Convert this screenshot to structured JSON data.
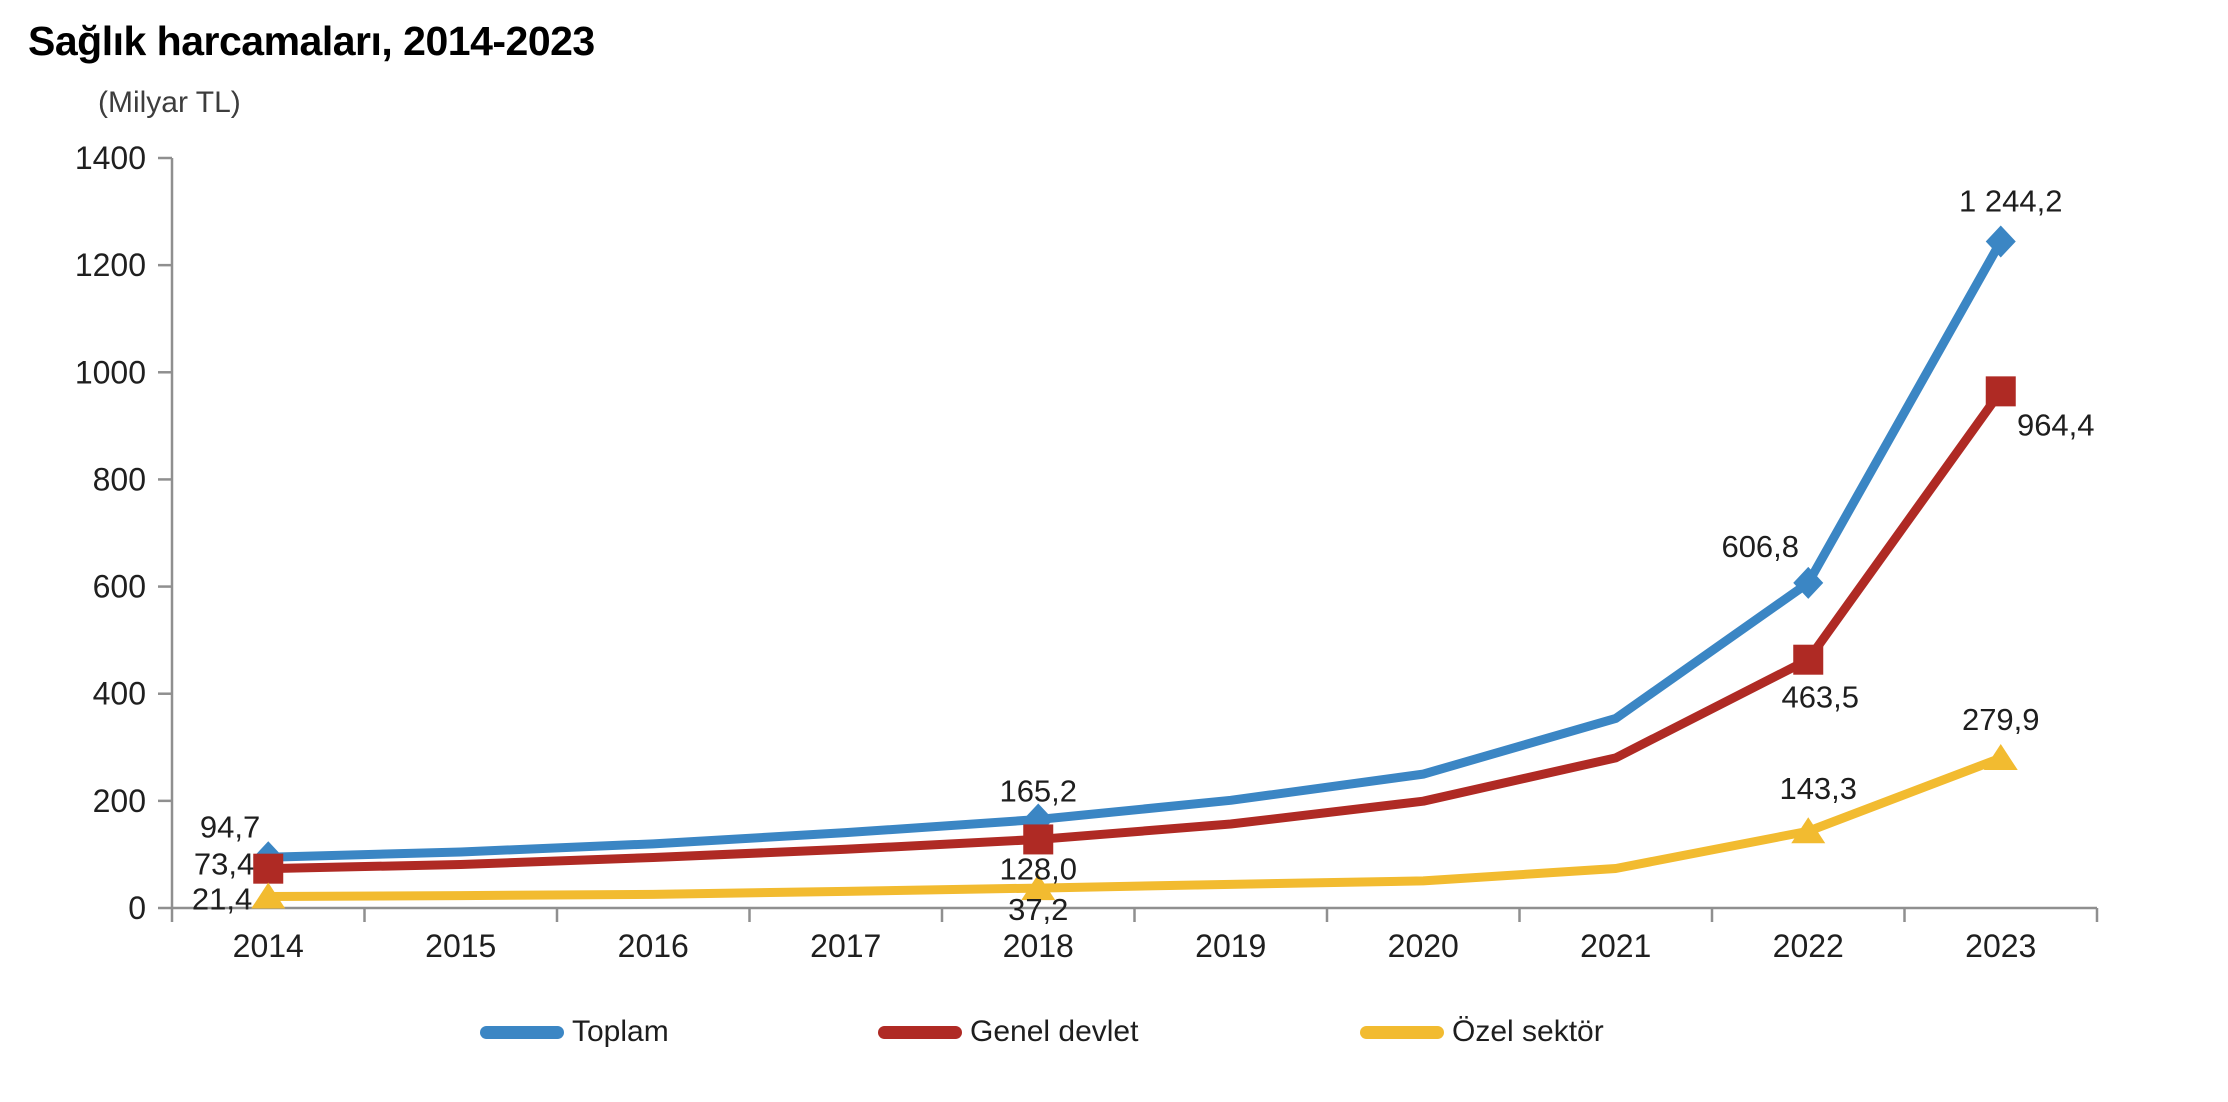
{
  "chart_data": {
    "type": "line",
    "title": "Sağlık harcamaları, 2014-2023",
    "unit_label": "(Milyar TL)",
    "categories": [
      "2014",
      "2015",
      "2016",
      "2017",
      "2018",
      "2019",
      "2020",
      "2021",
      "2022",
      "2023"
    ],
    "ylim": [
      0,
      1400
    ],
    "yticks": [
      0,
      200,
      400,
      600,
      800,
      1000,
      1200,
      1400
    ],
    "grid": false,
    "legend_position": "bottom",
    "axis_color": "#8f8f8f",
    "text_color": "#1f1f1f",
    "series": [
      {
        "name": "Toplam",
        "color": "#3b86c4",
        "marker": "diamond",
        "values": [
          94.7,
          104.6,
          119.8,
          140.6,
          165.2,
          201.0,
          249.9,
          353.9,
          606.8,
          1244.2
        ],
        "labels": [
          {
            "x": "2014",
            "text": "94,7",
            "anchor": "end",
            "dx": -8,
            "dy": -20
          },
          {
            "x": "2018",
            "text": "165,2",
            "anchor": "middle",
            "dx": 0,
            "dy": -18
          },
          {
            "x": "2022",
            "text": "606,8",
            "anchor": "middle",
            "dx": -48,
            "dy": -26
          },
          {
            "x": "2023",
            "text": "1 244,2",
            "anchor": "middle",
            "dx": 10,
            "dy": -30
          }
        ]
      },
      {
        "name": "Genel devlet",
        "color": "#af2a24",
        "marker": "square",
        "values": [
          73.4,
          81.3,
          94.3,
          109.6,
          128.0,
          156.8,
          199.4,
          280.3,
          463.5,
          964.4
        ],
        "labels": [
          {
            "x": "2014",
            "text": "73,4",
            "anchor": "end",
            "dx": -14,
            "dy": 6
          },
          {
            "x": "2018",
            "text": "128,0",
            "anchor": "middle",
            "dx": 0,
            "dy": 40
          },
          {
            "x": "2022",
            "text": "463,5",
            "anchor": "middle",
            "dx": 12,
            "dy": 48
          },
          {
            "x": "2023",
            "text": "964,4",
            "anchor": "middle",
            "dx": 55,
            "dy": 44
          }
        ]
      },
      {
        "name": "Özel sektör",
        "color": "#f2bb30",
        "marker": "triangle",
        "values": [
          21.4,
          23.2,
          25.5,
          31.1,
          37.2,
          44.2,
          50.6,
          73.7,
          143.3,
          279.9
        ],
        "labels": [
          {
            "x": "2014",
            "text": "21,4",
            "anchor": "end",
            "dx": -16,
            "dy": 13
          },
          {
            "x": "2018",
            "text": "37,2",
            "anchor": "middle",
            "dx": 0,
            "dy": 32
          },
          {
            "x": "2022",
            "text": "143,3",
            "anchor": "middle",
            "dx": 10,
            "dy": -32
          },
          {
            "x": "2023",
            "text": "279,9",
            "anchor": "middle",
            "dx": 0,
            "dy": -28
          }
        ]
      }
    ]
  }
}
